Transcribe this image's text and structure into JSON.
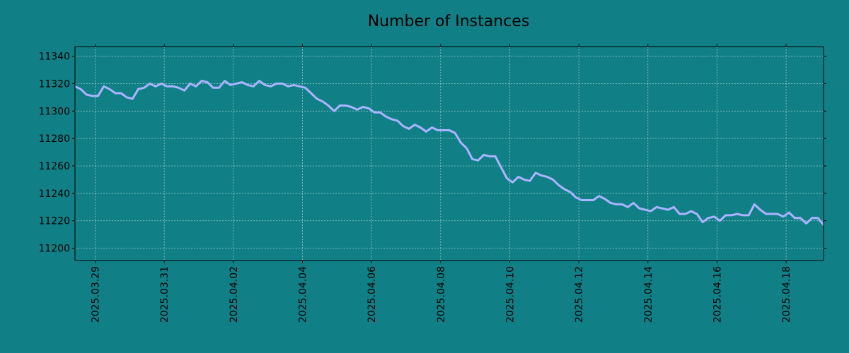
{
  "chart_data": {
    "type": "line",
    "title": "Number of Instances",
    "xlabel": "",
    "ylabel": "",
    "xlim": [
      "2025-03-28T10:00",
      "2025-04-19T02:00"
    ],
    "ylim": [
      11191,
      11347
    ],
    "y_ticks": [
      11200,
      11220,
      11240,
      11260,
      11280,
      11300,
      11320,
      11340
    ],
    "x_ticks": [
      "2025.03.29",
      "2025.03.31",
      "2025.04.02",
      "2025.04.04",
      "2025.04.06",
      "2025.04.08",
      "2025.04.10",
      "2025.04.12",
      "2025.04.14",
      "2025.04.16",
      "2025.04.18"
    ],
    "grid": true,
    "background_color": "#118086",
    "line_color": "#aab4ff",
    "series": [
      {
        "x": [
          "2025-03-28T10:00",
          "2025-03-28T14:00",
          "2025-03-28T18:00",
          "2025-03-28T22:00",
          "2025-03-29T02:00",
          "2025-03-29T06:00",
          "2025-03-29T10:00",
          "2025-03-29T14:00",
          "2025-03-29T18:00",
          "2025-03-29T22:00",
          "2025-03-30T02:00",
          "2025-03-30T06:00",
          "2025-03-30T10:00",
          "2025-03-30T14:00",
          "2025-03-30T18:00",
          "2025-03-30T22:00",
          "2025-03-31T02:00",
          "2025-03-31T06:00",
          "2025-03-31T10:00",
          "2025-03-31T14:00",
          "2025-03-31T18:00",
          "2025-03-31T22:00",
          "2025-04-01T02:00",
          "2025-04-01T06:00",
          "2025-04-01T10:00",
          "2025-04-01T14:00",
          "2025-04-01T18:00",
          "2025-04-01T22:00",
          "2025-04-02T02:00",
          "2025-04-02T06:00",
          "2025-04-02T10:00",
          "2025-04-02T14:00",
          "2025-04-02T18:00",
          "2025-04-02T22:00",
          "2025-04-03T02:00",
          "2025-04-03T06:00",
          "2025-04-03T10:00",
          "2025-04-03T14:00",
          "2025-04-03T18:00",
          "2025-04-03T22:00",
          "2025-04-04T02:00",
          "2025-04-04T06:00",
          "2025-04-04T10:00",
          "2025-04-04T14:00",
          "2025-04-04T18:00",
          "2025-04-04T22:00",
          "2025-04-05T02:00",
          "2025-04-05T06:00",
          "2025-04-05T10:00",
          "2025-04-05T14:00",
          "2025-04-05T18:00",
          "2025-04-05T22:00",
          "2025-04-06T02:00",
          "2025-04-06T06:00",
          "2025-04-06T10:00",
          "2025-04-06T14:00",
          "2025-04-06T18:00",
          "2025-04-06T22:00",
          "2025-04-07T02:00",
          "2025-04-07T06:00",
          "2025-04-07T10:00",
          "2025-04-07T14:00",
          "2025-04-07T18:00",
          "2025-04-07T22:00",
          "2025-04-08T02:00",
          "2025-04-08T06:00",
          "2025-04-08T10:00",
          "2025-04-08T14:00",
          "2025-04-08T18:00",
          "2025-04-08T22:00",
          "2025-04-09T02:00",
          "2025-04-09T06:00",
          "2025-04-09T10:00",
          "2025-04-09T14:00",
          "2025-04-09T18:00",
          "2025-04-09T22:00",
          "2025-04-10T02:00",
          "2025-04-10T06:00",
          "2025-04-10T10:00",
          "2025-04-10T14:00",
          "2025-04-10T18:00",
          "2025-04-10T22:00",
          "2025-04-11T02:00",
          "2025-04-11T06:00",
          "2025-04-11T10:00",
          "2025-04-11T14:00",
          "2025-04-11T18:00",
          "2025-04-11T22:00",
          "2025-04-12T02:00",
          "2025-04-12T06:00",
          "2025-04-12T10:00",
          "2025-04-12T14:00",
          "2025-04-12T18:00",
          "2025-04-12T22:00",
          "2025-04-13T02:00",
          "2025-04-13T06:00",
          "2025-04-13T10:00",
          "2025-04-13T14:00",
          "2025-04-13T18:00",
          "2025-04-13T22:00",
          "2025-04-14T02:00",
          "2025-04-14T06:00",
          "2025-04-14T10:00",
          "2025-04-14T14:00",
          "2025-04-14T18:00",
          "2025-04-14T22:00",
          "2025-04-15T02:00",
          "2025-04-15T06:00",
          "2025-04-15T10:00",
          "2025-04-15T14:00",
          "2025-04-15T18:00",
          "2025-04-15T22:00",
          "2025-04-16T02:00",
          "2025-04-16T06:00",
          "2025-04-16T10:00",
          "2025-04-16T14:00",
          "2025-04-16T18:00",
          "2025-04-16T22:00",
          "2025-04-17T02:00",
          "2025-04-17T06:00",
          "2025-04-17T10:00",
          "2025-04-17T14:00",
          "2025-04-17T18:00",
          "2025-04-17T22:00",
          "2025-04-18T02:00",
          "2025-04-18T06:00",
          "2025-04-18T10:00",
          "2025-04-18T14:00",
          "2025-04-18T18:00",
          "2025-04-18T22:00",
          "2025-04-19T02:00"
        ],
        "y": [
          11318,
          11316,
          11312,
          11311,
          11311,
          11318,
          11316,
          11313,
          11313,
          11310,
          11309,
          11316,
          11317,
          11320,
          11318,
          11320,
          11318,
          11318,
          11317,
          11315,
          11320,
          11318,
          11322,
          11321,
          11317,
          11317,
          11322,
          11319,
          11320,
          11321,
          11319,
          11318,
          11322,
          11319,
          11318,
          11320,
          11320,
          11318,
          11319,
          11318,
          11317,
          11313,
          11309,
          11307,
          11304,
          11300,
          11304,
          11304,
          11303,
          11301,
          11303,
          11302,
          11299,
          11299,
          11296,
          11294,
          11293,
          11289,
          11287,
          11290,
          11288,
          11285,
          11288,
          11286,
          11286,
          11286,
          11284,
          11277,
          11273,
          11265,
          11264,
          11268,
          11267,
          11267,
          11259,
          11251,
          11248,
          11252,
          11250,
          11249,
          11255,
          11253,
          11252,
          11250,
          11246,
          11243,
          11241,
          11237,
          11235,
          11235,
          11235,
          11238,
          11236,
          11233,
          11232,
          11232,
          11230,
          11233,
          11229,
          11228,
          11227,
          11230,
          11229,
          11228,
          11230,
          11225,
          11225,
          11227,
          11225,
          11219,
          11222,
          11223,
          11220,
          11224,
          11224,
          11225,
          11224,
          11224,
          11232,
          11228,
          11225,
          11225,
          11225,
          11223,
          11226,
          11222,
          11222,
          11218,
          11222,
          11222,
          11217
        ]
      }
    ]
  }
}
